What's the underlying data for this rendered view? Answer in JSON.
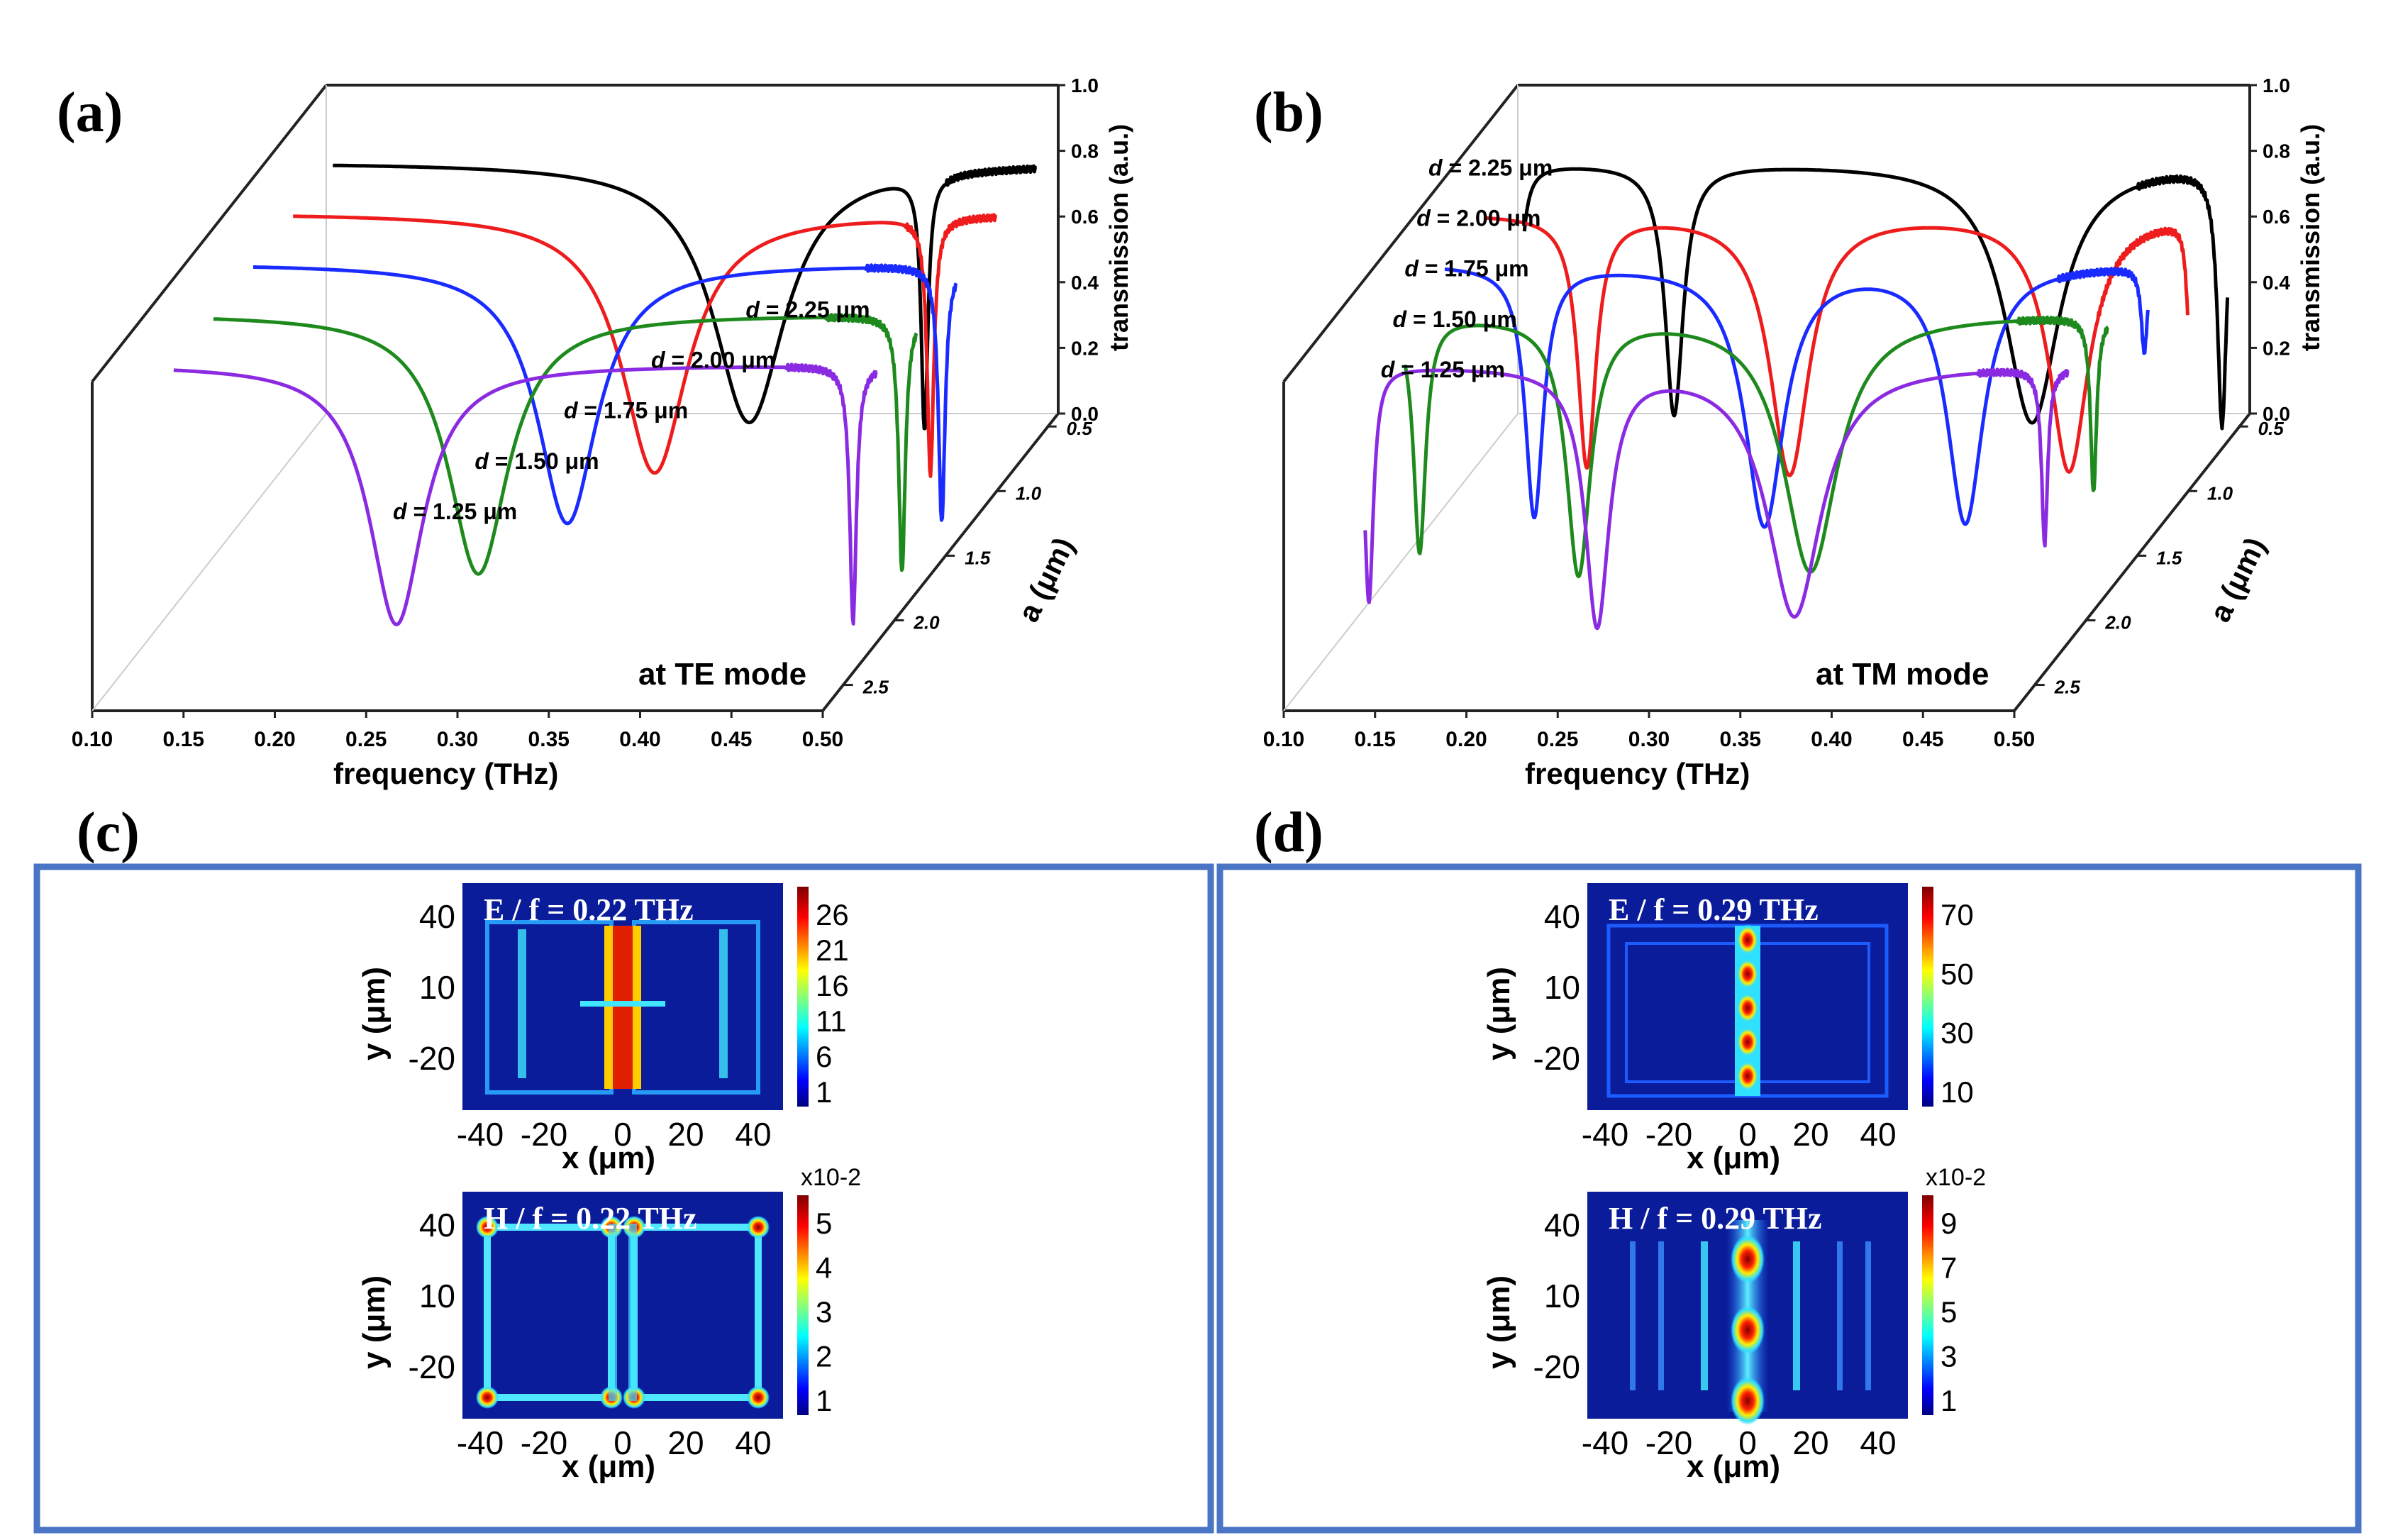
{
  "colors": {
    "black": "#000000",
    "red": "#ee1c1c",
    "blue": "#1a2bff",
    "green": "#1e8a1e",
    "purple": "#8a2be2",
    "frame": "#4a74c4",
    "fieldbg": "#0a1c9a"
  },
  "panel_labels": {
    "a": "(a)",
    "b": "(b)",
    "c": "(c)",
    "d": "(d)"
  },
  "chart_data": [
    {
      "id": "a",
      "type": "line",
      "title": "at TE mode",
      "xlabel": "frequency (THz)",
      "zlabel": "transmission (a.u.)",
      "ylabel": "a (μm)",
      "xlim": [
        0.1,
        0.5
      ],
      "zlim": [
        0.0,
        1.0
      ],
      "x_ticks": [
        "0.10",
        "0.15",
        "0.20",
        "0.25",
        "0.30",
        "0.35",
        "0.40",
        "0.45",
        "0.50"
      ],
      "z_ticks": [
        "0.0",
        "0.2",
        "0.4",
        "0.6",
        "0.8",
        "1.0"
      ],
      "y_ticks": [
        "0.5",
        "1.0",
        "1.5",
        "2.0",
        "2.5"
      ],
      "series": [
        {
          "name": "d = 2.25 μm",
          "color": "#000000",
          "dips": [
            [
              0.338,
              0.02,
              0.024
            ],
            [
              0.434,
              0.03,
              0.0022
            ]
          ]
        },
        {
          "name": "d = 2.00 μm",
          "color": "#ee1c1c",
          "dips": [
            [
              0.308,
              0.02,
              0.022
            ],
            [
              0.459,
              0.03,
              0.0022
            ]
          ]
        },
        {
          "name": "d = 1.75 μm",
          "color": "#1a2bff",
          "dips": [
            [
              0.282,
              0.02,
              0.02
            ],
            [
              0.487,
              0.03,
              0.0022
            ]
          ]
        },
        {
          "name": "d = 1.50 μm",
          "color": "#1e8a1e",
          "dips": [
            [
              0.255,
              0.02,
              0.02
            ],
            [
              0.487,
              0.03,
              0.0022
            ]
          ]
        },
        {
          "name": "d = 1.25 μm",
          "color": "#8a2be2",
          "dips": [
            [
              0.232,
              0.02,
              0.018
            ],
            [
              0.482,
              0.03,
              0.0022
            ]
          ]
        }
      ]
    },
    {
      "id": "b",
      "type": "line",
      "title": "at TM mode",
      "xlabel": "frequency (THz)",
      "zlabel": "transmission (a.u.)",
      "ylabel": "a (μm)",
      "xlim": [
        0.1,
        0.5
      ],
      "zlim": [
        0.0,
        1.0
      ],
      "x_ticks": [
        "0.10",
        "0.15",
        "0.20",
        "0.25",
        "0.30",
        "0.35",
        "0.40",
        "0.45",
        "0.50"
      ],
      "z_ticks": [
        "0.0",
        "0.2",
        "0.4",
        "0.6",
        "0.8",
        "1.0"
      ],
      "y_ticks": [
        "0.5",
        "1.0",
        "1.5",
        "2.0",
        "2.5"
      ],
      "series": [
        {
          "name": "d = 2.25 μm",
          "color": "#000000",
          "dips": [
            [
              0.105,
              0.05,
              0.003
            ],
            [
              0.192,
              0.05,
              0.006
            ],
            [
              0.388,
              0.02,
              0.018
            ],
            [
              0.492,
              0.03,
              0.003
            ]
          ]
        },
        {
          "name": "d = 2.00 μm",
          "color": "#ee1c1c",
          "dips": [
            [
              0.166,
              0.05,
              0.006
            ],
            [
              0.277,
              0.02,
              0.013
            ],
            [
              0.43,
              0.03,
              0.013
            ],
            [
              0.496,
              0.5,
              0.002
            ]
          ]
        },
        {
          "name": "d = 1.75 μm",
          "color": "#1a2bff",
          "dips": [
            [
              0.159,
              0.05,
              0.006
            ],
            [
              0.285,
              0.02,
              0.013
            ],
            [
              0.395,
              0.03,
              0.012
            ],
            [
              0.493,
              0.6,
              0.002
            ]
          ]
        },
        {
          "name": "d = 1.50 μm",
          "color": "#1e8a1e",
          "dips": [
            [
              0.118,
              0.1,
              0.004
            ],
            [
              0.205,
              0.03,
              0.008
            ],
            [
              0.332,
              0.03,
              0.018
            ],
            [
              0.487,
              0.3,
              0.002
            ]
          ]
        },
        {
          "name": "d = 1.25 μm",
          "color": "#8a2be2",
          "dips": [
            [
              0.112,
              0.1,
              0.003
            ],
            [
              0.237,
              0.03,
              0.008
            ],
            [
              0.345,
              0.05,
              0.018
            ],
            [
              0.482,
              0.3,
              0.002
            ]
          ]
        }
      ]
    }
  ],
  "field_maps": [
    {
      "id": "c_E",
      "title": "E / f = 0.22 THz",
      "colorbar": [
        "26",
        "21",
        "16",
        "11",
        "6",
        "1"
      ],
      "exponent": ""
    },
    {
      "id": "c_H",
      "title": "H / f = 0.22 THz",
      "colorbar": [
        "5",
        "4",
        "3",
        "2",
        "1"
      ],
      "exponent": "x10-2"
    },
    {
      "id": "d_E",
      "title": "E / f = 0.29 THz",
      "colorbar": [
        "70",
        "50",
        "30",
        "10"
      ],
      "exponent": ""
    },
    {
      "id": "d_H",
      "title": "H / f = 0.29 THz",
      "colorbar": [
        "9",
        "7",
        "5",
        "3",
        "1"
      ],
      "exponent": "x10-2"
    }
  ],
  "field_axes": {
    "x_ticks": [
      "-40",
      "-20",
      "0",
      "20",
      "40"
    ],
    "y_ticks": [
      "40",
      "10",
      "-20"
    ],
    "xlabel": "x (μm)",
    "ylabel": "y (μm)"
  }
}
